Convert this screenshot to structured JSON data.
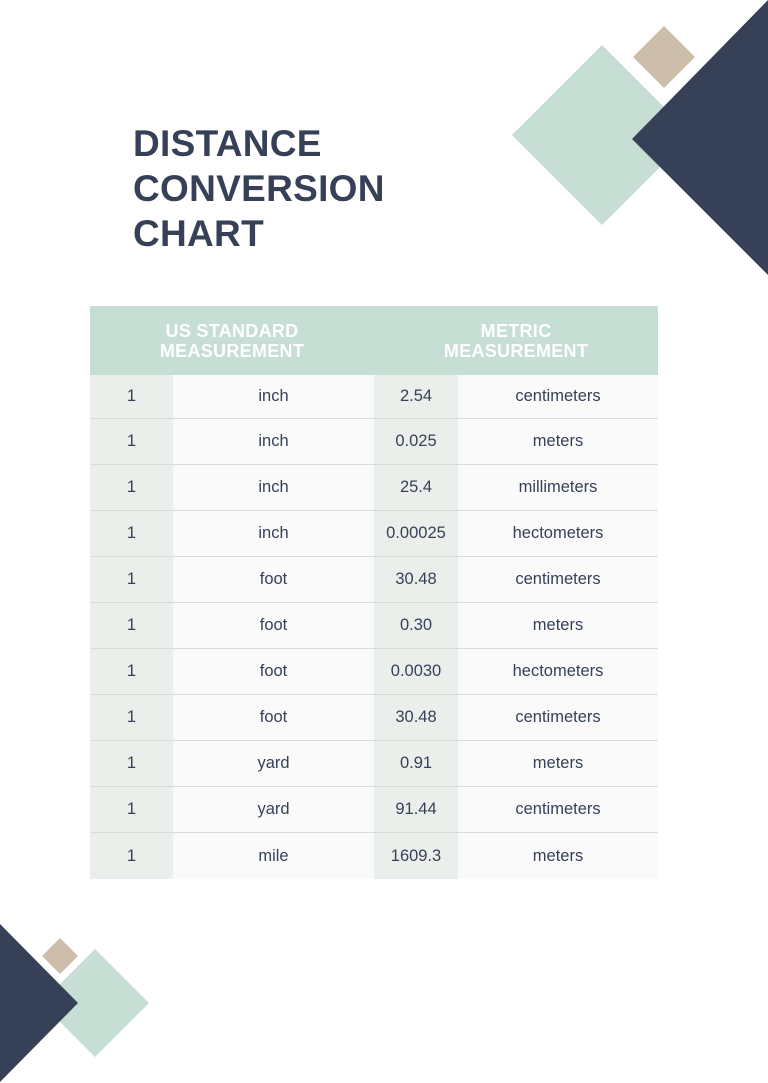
{
  "title_lines": [
    "DISTANCE",
    "CONVERSION",
    "CHART"
  ],
  "table": {
    "headers": {
      "us_standard": [
        "US STANDARD",
        "MEASUREMENT"
      ],
      "metric": [
        "METRIC",
        "MEASUREMENT"
      ]
    },
    "rows": [
      {
        "qty": "1",
        "unit": "inch",
        "value": "2.54",
        "metric_unit": "centimeters"
      },
      {
        "qty": "1",
        "unit": "inch",
        "value": "0.025",
        "metric_unit": "meters"
      },
      {
        "qty": "1",
        "unit": "inch",
        "value": "25.4",
        "metric_unit": "millimeters"
      },
      {
        "qty": "1",
        "unit": "inch",
        "value": "0.00025",
        "metric_unit": "hectometers"
      },
      {
        "qty": "1",
        "unit": "foot",
        "value": "30.48",
        "metric_unit": "centimeters"
      },
      {
        "qty": "1",
        "unit": "foot",
        "value": "0.30",
        "metric_unit": "meters"
      },
      {
        "qty": "1",
        "unit": "foot",
        "value": "0.0030",
        "metric_unit": "hectometers"
      },
      {
        "qty": "1",
        "unit": "foot",
        "value": "30.48",
        "metric_unit": "centimeters"
      },
      {
        "qty": "1",
        "unit": "yard",
        "value": "0.91",
        "metric_unit": "meters"
      },
      {
        "qty": "1",
        "unit": "yard",
        "value": "91.44",
        "metric_unit": "centimeters"
      },
      {
        "qty": "1",
        "unit": "mile",
        "value": "1609.3",
        "metric_unit": "meters"
      }
    ]
  },
  "colors": {
    "navy": "#364158",
    "mint": "#c6ded3",
    "tan": "#cbbda9",
    "cell_gray": "#ebefec",
    "cell_white": "#fafafa"
  }
}
